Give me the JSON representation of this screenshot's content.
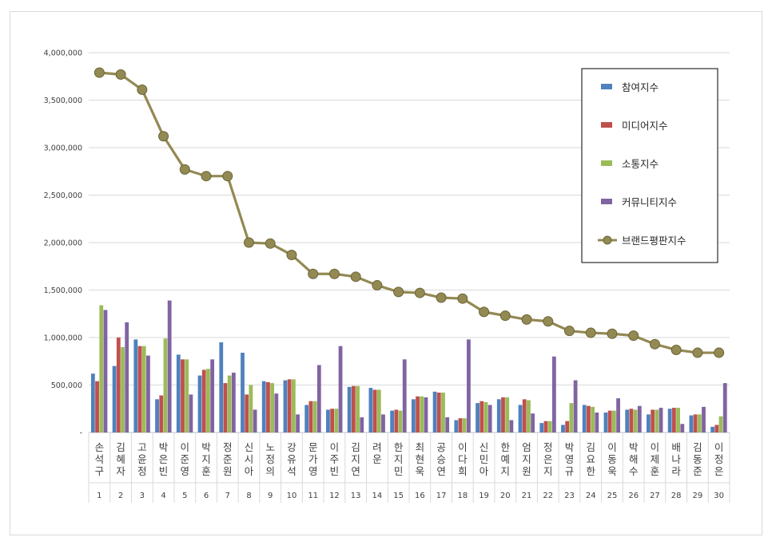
{
  "chart_data": {
    "type": "bar",
    "title": "",
    "xlabel": "",
    "ylabel": "",
    "ylim": [
      0,
      4000000
    ],
    "yticks": [
      {
        "value": 0,
        "label": "-"
      },
      {
        "value": 500000,
        "label": "500,000"
      },
      {
        "value": 1000000,
        "label": "1,000,000"
      },
      {
        "value": 1500000,
        "label": "1,500,000"
      },
      {
        "value": 2000000,
        "label": "2,000,000"
      },
      {
        "value": 2500000,
        "label": "2,500,000"
      },
      {
        "value": 3000000,
        "label": "3,000,000"
      },
      {
        "value": 3500000,
        "label": "3,500,000"
      },
      {
        "value": 4000000,
        "label": "4,000,000"
      }
    ],
    "grid": true,
    "legend_position": "top-right",
    "categories": [
      "손석구",
      "김혜자",
      "고윤정",
      "박은빈",
      "이준영",
      "박지훈",
      "정준원",
      "신시아",
      "노정의",
      "강유석",
      "문가영",
      "이주빈",
      "김지연",
      "려운",
      "한지민",
      "최현욱",
      "공승연",
      "이다희",
      "신민아",
      "한예지",
      "엄지원",
      "정은지",
      "박영규",
      "김요한",
      "이동욱",
      "박해수",
      "이제훈",
      "배나라",
      "김동준",
      "이정은"
    ],
    "ranks": [
      "1",
      "2",
      "3",
      "4",
      "5",
      "6",
      "7",
      "8",
      "9",
      "10",
      "11",
      "12",
      "13",
      "14",
      "15",
      "16",
      "17",
      "18",
      "19",
      "20",
      "21",
      "22",
      "23",
      "24",
      "25",
      "26",
      "27",
      "28",
      "29",
      "30"
    ],
    "series": [
      {
        "name": "참여지수",
        "color": "#4f81bd",
        "kind": "bar",
        "values": [
          620000,
          700000,
          980000,
          350000,
          820000,
          600000,
          950000,
          840000,
          540000,
          550000,
          290000,
          240000,
          480000,
          470000,
          230000,
          350000,
          430000,
          130000,
          310000,
          350000,
          290000,
          100000,
          80000,
          290000,
          210000,
          240000,
          190000,
          250000,
          180000,
          60000
        ]
      },
      {
        "name": "미디어지수",
        "color": "#c0504d",
        "kind": "bar",
        "values": [
          540000,
          1000000,
          910000,
          390000,
          770000,
          660000,
          520000,
          400000,
          530000,
          560000,
          330000,
          250000,
          490000,
          450000,
          240000,
          380000,
          420000,
          150000,
          330000,
          370000,
          350000,
          120000,
          120000,
          280000,
          230000,
          250000,
          240000,
          260000,
          190000,
          80000
        ]
      },
      {
        "name": "소통지수",
        "color": "#9bbb59",
        "kind": "bar",
        "values": [
          1340000,
          900000,
          910000,
          990000,
          770000,
          670000,
          600000,
          500000,
          520000,
          560000,
          330000,
          250000,
          490000,
          450000,
          230000,
          380000,
          420000,
          150000,
          320000,
          370000,
          340000,
          120000,
          310000,
          270000,
          230000,
          240000,
          240000,
          260000,
          190000,
          170000
        ]
      },
      {
        "name": "커뮤니티지수",
        "color": "#8064a2",
        "kind": "bar",
        "values": [
          1290000,
          1160000,
          810000,
          1390000,
          400000,
          770000,
          630000,
          240000,
          410000,
          190000,
          710000,
          910000,
          160000,
          190000,
          770000,
          370000,
          160000,
          980000,
          290000,
          130000,
          200000,
          800000,
          550000,
          210000,
          360000,
          280000,
          260000,
          90000,
          270000,
          520000
        ]
      },
      {
        "name": "브랜드평판지수",
        "color": "#938953",
        "kind": "line",
        "values": [
          3790000,
          3770000,
          3610000,
          3120000,
          2770000,
          2700000,
          2700000,
          2000000,
          1990000,
          1870000,
          1670000,
          1670000,
          1640000,
          1550000,
          1480000,
          1470000,
          1420000,
          1410000,
          1270000,
          1230000,
          1190000,
          1170000,
          1070000,
          1050000,
          1040000,
          1020000,
          930000,
          870000,
          840000,
          840000
        ]
      }
    ]
  }
}
